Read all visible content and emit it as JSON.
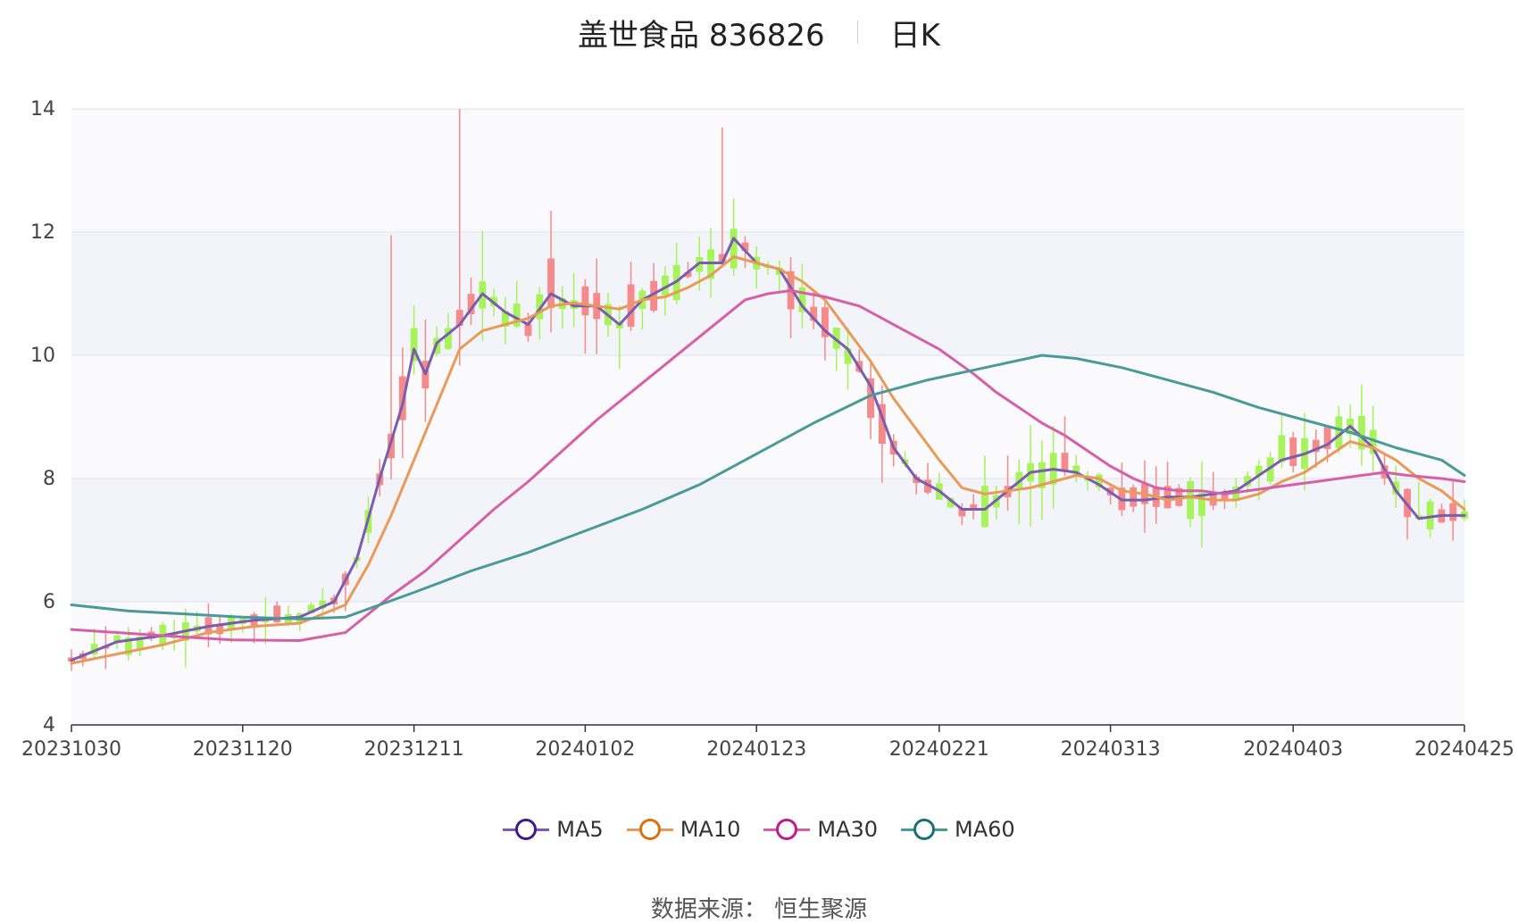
{
  "chart_data": {
    "type": "candlestick",
    "title": "盖世食品 836826",
    "subtitle": "日K",
    "ylim": [
      4,
      14
    ],
    "y_ticks": [
      "4",
      "6",
      "8",
      "10",
      "12",
      "14"
    ],
    "x_ticks": [
      "20231030",
      "20231120",
      "20231211",
      "20240102",
      "20240123",
      "20240221",
      "20240313",
      "20240403",
      "20240425"
    ],
    "up_color": "#f58a8a",
    "down_color": "#a6f35a",
    "series": [
      {
        "name": "MA5",
        "color": "#7b5cae",
        "marker": "#3d1a8e",
        "values": [
          [
            0,
            5.05
          ],
          [
            4,
            5.35
          ],
          [
            8,
            5.45
          ],
          [
            12,
            5.6
          ],
          [
            16,
            5.7
          ],
          [
            20,
            5.75
          ],
          [
            23,
            6.0
          ],
          [
            25,
            6.7
          ],
          [
            27,
            8.0
          ],
          [
            29,
            9.2
          ],
          [
            30,
            10.1
          ],
          [
            31,
            9.7
          ],
          [
            32,
            10.2
          ],
          [
            34,
            10.5
          ],
          [
            36,
            11.0
          ],
          [
            38,
            10.7
          ],
          [
            40,
            10.5
          ],
          [
            42,
            11.0
          ],
          [
            44,
            10.8
          ],
          [
            46,
            10.8
          ],
          [
            48,
            10.5
          ],
          [
            50,
            10.9
          ],
          [
            53,
            11.2
          ],
          [
            55,
            11.5
          ],
          [
            57,
            11.5
          ],
          [
            58,
            11.9
          ],
          [
            60,
            11.5
          ],
          [
            62,
            11.4
          ],
          [
            64,
            10.8
          ],
          [
            66,
            10.4
          ],
          [
            68,
            10.1
          ],
          [
            70,
            9.5
          ],
          [
            72,
            8.5
          ],
          [
            74,
            8.0
          ],
          [
            76,
            7.8
          ],
          [
            78,
            7.5
          ],
          [
            80,
            7.5
          ],
          [
            82,
            7.8
          ],
          [
            84,
            8.1
          ],
          [
            86,
            8.15
          ],
          [
            88,
            8.1
          ],
          [
            90,
            7.9
          ],
          [
            92,
            7.65
          ],
          [
            94,
            7.65
          ],
          [
            96,
            7.7
          ],
          [
            98,
            7.7
          ],
          [
            100,
            7.75
          ],
          [
            102,
            7.8
          ],
          [
            104,
            8.05
          ],
          [
            106,
            8.3
          ],
          [
            108,
            8.4
          ],
          [
            110,
            8.55
          ],
          [
            112,
            8.85
          ],
          [
            114,
            8.5
          ],
          [
            116,
            7.8
          ],
          [
            118,
            7.35
          ],
          [
            120,
            7.4
          ],
          [
            122,
            7.4
          ]
        ]
      },
      {
        "name": "MA10",
        "color": "#e89a58",
        "marker": "#d87310",
        "values": [
          [
            0,
            5.0
          ],
          [
            4,
            5.15
          ],
          [
            8,
            5.3
          ],
          [
            12,
            5.5
          ],
          [
            16,
            5.6
          ],
          [
            20,
            5.65
          ],
          [
            24,
            5.95
          ],
          [
            26,
            6.6
          ],
          [
            28,
            7.4
          ],
          [
            30,
            8.3
          ],
          [
            32,
            9.2
          ],
          [
            34,
            10.1
          ],
          [
            36,
            10.4
          ],
          [
            38,
            10.5
          ],
          [
            40,
            10.6
          ],
          [
            42,
            10.8
          ],
          [
            44,
            10.85
          ],
          [
            46,
            10.8
          ],
          [
            48,
            10.75
          ],
          [
            50,
            10.9
          ],
          [
            52,
            10.95
          ],
          [
            54,
            11.1
          ],
          [
            56,
            11.3
          ],
          [
            58,
            11.6
          ],
          [
            60,
            11.5
          ],
          [
            62,
            11.4
          ],
          [
            64,
            11.2
          ],
          [
            66,
            10.9
          ],
          [
            68,
            10.4
          ],
          [
            70,
            9.9
          ],
          [
            72,
            9.3
          ],
          [
            74,
            8.8
          ],
          [
            76,
            8.3
          ],
          [
            78,
            7.85
          ],
          [
            80,
            7.75
          ],
          [
            82,
            7.8
          ],
          [
            84,
            7.85
          ],
          [
            86,
            7.95
          ],
          [
            88,
            8.05
          ],
          [
            90,
            8.0
          ],
          [
            92,
            7.8
          ],
          [
            94,
            7.75
          ],
          [
            96,
            7.65
          ],
          [
            98,
            7.7
          ],
          [
            100,
            7.65
          ],
          [
            102,
            7.65
          ],
          [
            104,
            7.75
          ],
          [
            106,
            7.95
          ],
          [
            108,
            8.1
          ],
          [
            110,
            8.35
          ],
          [
            112,
            8.6
          ],
          [
            114,
            8.5
          ],
          [
            116,
            8.3
          ],
          [
            118,
            8.0
          ],
          [
            120,
            7.8
          ],
          [
            122,
            7.5
          ]
        ]
      },
      {
        "name": "MA30",
        "color": "#d660a8",
        "marker": "#c01a8a",
        "values": [
          [
            0,
            5.55
          ],
          [
            8,
            5.45
          ],
          [
            14,
            5.38
          ],
          [
            20,
            5.37
          ],
          [
            24,
            5.5
          ],
          [
            26,
            5.8
          ],
          [
            28,
            6.1
          ],
          [
            31,
            6.5
          ],
          [
            34,
            7.0
          ],
          [
            37,
            7.5
          ],
          [
            40,
            7.95
          ],
          [
            43,
            8.45
          ],
          [
            46,
            8.95
          ],
          [
            49,
            9.4
          ],
          [
            52,
            9.85
          ],
          [
            55,
            10.3
          ],
          [
            57,
            10.6
          ],
          [
            59,
            10.9
          ],
          [
            61,
            11.0
          ],
          [
            63,
            11.05
          ],
          [
            66,
            10.95
          ],
          [
            69,
            10.8
          ],
          [
            71,
            10.6
          ],
          [
            73,
            10.4
          ],
          [
            76,
            10.1
          ],
          [
            79,
            9.7
          ],
          [
            81,
            9.4
          ],
          [
            83,
            9.15
          ],
          [
            85,
            8.9
          ],
          [
            87,
            8.7
          ],
          [
            89,
            8.45
          ],
          [
            91,
            8.2
          ],
          [
            93,
            8.0
          ],
          [
            95,
            7.85
          ],
          [
            97,
            7.8
          ],
          [
            99,
            7.8
          ],
          [
            101,
            7.75
          ],
          [
            103,
            7.8
          ],
          [
            105,
            7.85
          ],
          [
            107,
            7.9
          ],
          [
            109,
            7.95
          ],
          [
            111,
            8.0
          ],
          [
            113,
            8.05
          ],
          [
            115,
            8.1
          ],
          [
            117,
            8.05
          ],
          [
            120,
            8.0
          ],
          [
            122,
            7.95
          ]
        ]
      },
      {
        "name": "MA60",
        "color": "#4a9a9a",
        "marker": "#1a7070",
        "values": [
          [
            0,
            5.95
          ],
          [
            5,
            5.85
          ],
          [
            10,
            5.8
          ],
          [
            15,
            5.75
          ],
          [
            20,
            5.72
          ],
          [
            24,
            5.75
          ],
          [
            27,
            5.95
          ],
          [
            30,
            6.15
          ],
          [
            35,
            6.5
          ],
          [
            40,
            6.8
          ],
          [
            45,
            7.15
          ],
          [
            50,
            7.5
          ],
          [
            55,
            7.9
          ],
          [
            60,
            8.4
          ],
          [
            65,
            8.9
          ],
          [
            70,
            9.35
          ],
          [
            75,
            9.6
          ],
          [
            80,
            9.8
          ],
          [
            85,
            10.0
          ],
          [
            88,
            9.95
          ],
          [
            92,
            9.8
          ],
          [
            96,
            9.6
          ],
          [
            100,
            9.4
          ],
          [
            104,
            9.15
          ],
          [
            108,
            8.95
          ],
          [
            112,
            8.75
          ],
          [
            116,
            8.5
          ],
          [
            120,
            8.3
          ],
          [
            122,
            8.05
          ]
        ]
      }
    ]
  },
  "legend": {
    "items": [
      {
        "label": "MA5",
        "color": "#7b5cae",
        "marker": "#3d1a8e"
      },
      {
        "label": "MA10",
        "color": "#e89a58",
        "marker": "#d87310"
      },
      {
        "label": "MA30",
        "color": "#d660a8",
        "marker": "#c01a8a"
      },
      {
        "label": "MA60",
        "color": "#4a9a9a",
        "marker": "#1a7070"
      }
    ]
  },
  "footer": {
    "source": "数据来源： 恒生聚源"
  }
}
